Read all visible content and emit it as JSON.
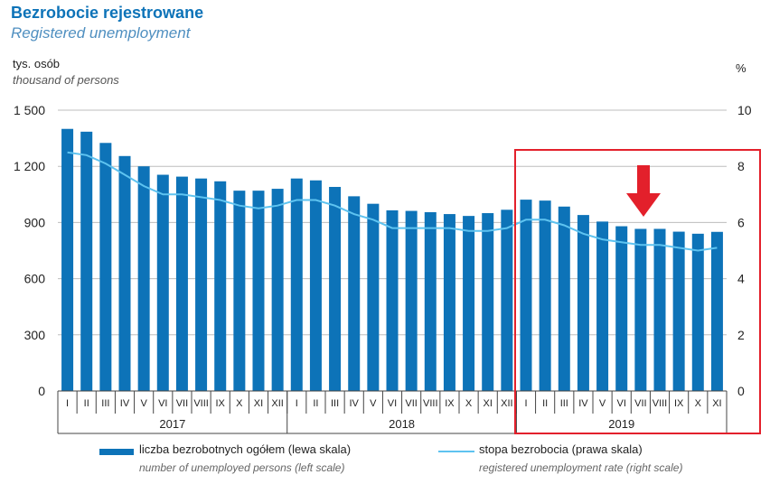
{
  "header": {
    "title": "Bezrobocie rejestrowane",
    "subtitle": "Registered unemployment"
  },
  "axis_units": {
    "left_pl": "tys. osób",
    "left_en": "thousand of persons",
    "right": "%"
  },
  "legend": {
    "bars_pl": "liczba bezrobotnych ogółem (lewa skala)",
    "bars_en": "number of unemployed persons (left scale)",
    "line_pl": "stopa bezrobocia (prawa skala)",
    "line_en": "registered unemployment rate (right scale)"
  },
  "colors": {
    "bar": "#0d73b8",
    "line": "#5ec3f0",
    "highlight": "#e3202b",
    "grid": "#bdbdbd"
  },
  "chart_data": {
    "type": "bar",
    "title": "Bezrobocie rejestrowane",
    "left_axis": {
      "label": "tys. osób",
      "range": [
        0,
        1500
      ],
      "ticks": [
        "0",
        "300",
        "600",
        "900",
        "1 200",
        "1 500"
      ]
    },
    "right_axis": {
      "label": "%",
      "range": [
        0,
        10
      ],
      "ticks": [
        "0",
        "2",
        "4",
        "6",
        "8",
        "10"
      ]
    },
    "categories": [
      "I",
      "II",
      "III",
      "IV",
      "V",
      "VI",
      "VII",
      "VIII",
      "IX",
      "X",
      "XI",
      "XII",
      "I",
      "II",
      "III",
      "IV",
      "V",
      "VI",
      "VII",
      "VIII",
      "IX",
      "X",
      "XI",
      "XII",
      "I",
      "II",
      "III",
      "IV",
      "V",
      "VI",
      "VII",
      "VIII",
      "IX",
      "X",
      "XI"
    ],
    "years": [
      {
        "label": "2017",
        "months": 12
      },
      {
        "label": "2018",
        "months": 12
      },
      {
        "label": "2019",
        "months": 11
      }
    ],
    "series": [
      {
        "name": "liczba bezrobotnych ogółem (lewa skala)",
        "axis": "left",
        "kind": "bar",
        "values": [
          1400,
          1385,
          1325,
          1255,
          1200,
          1155,
          1145,
          1135,
          1120,
          1070,
          1070,
          1080,
          1135,
          1125,
          1090,
          1040,
          1000,
          965,
          962,
          955,
          945,
          935,
          950,
          968,
          1022,
          1017,
          985,
          940,
          905,
          880,
          866,
          866,
          851,
          840,
          850
        ]
      },
      {
        "name": "stopa bezrobocia (prawa skala)",
        "axis": "right",
        "kind": "line",
        "values": [
          8.5,
          8.4,
          8.1,
          7.7,
          7.3,
          7.0,
          7.0,
          6.9,
          6.8,
          6.6,
          6.5,
          6.6,
          6.8,
          6.8,
          6.6,
          6.3,
          6.1,
          5.8,
          5.8,
          5.8,
          5.8,
          5.7,
          5.7,
          5.8,
          6.1,
          6.1,
          5.9,
          5.6,
          5.4,
          5.3,
          5.2,
          5.2,
          5.1,
          5.0,
          5.1
        ]
      }
    ]
  }
}
